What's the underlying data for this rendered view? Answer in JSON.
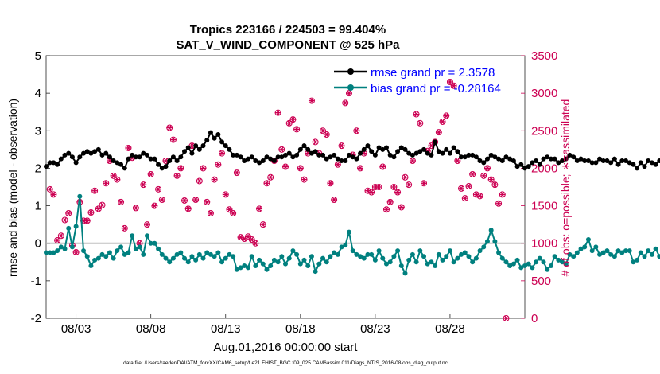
{
  "chart_data": {
    "type": "line",
    "title_line1": "Tropics 223166 / 224503 = 99.404%",
    "title_line2": "SAT_V_WIND_COMPONENT @ 525 hPa",
    "ylabel_left": "rmse and bias (model - observation)",
    "ylabel_right": "# of obs: o=possible; ∗=assimilated",
    "xlabel": "Aug.01,2016 00:00:00 start",
    "footnote": "data file: /Users/raeder/DAI/ATM_forcXX/CAM6_setup/f.e21.FHIST_BGC.f09_025.CAM6assim.011/Diags_NTrS_2016-08/obs_diag_output.nc",
    "xlim": [
      1,
      33
    ],
    "ylim_left": [
      -2,
      5
    ],
    "ylim_right": [
      0,
      3500
    ],
    "yticks_left": [
      "-2",
      "-1",
      "0",
      "1",
      "2",
      "3",
      "4",
      "5"
    ],
    "yticks_right": [
      "0",
      "500",
      "1000",
      "1500",
      "2000",
      "2500",
      "3000",
      "3500"
    ],
    "xticks": [
      {
        "day": 3,
        "label": "08/03"
      },
      {
        "day": 8,
        "label": "08/08"
      },
      {
        "day": 13,
        "label": "08/13"
      },
      {
        "day": 18,
        "label": "08/18"
      },
      {
        "day": 23,
        "label": "08/23"
      },
      {
        "day": 28,
        "label": "08/28"
      }
    ],
    "legend": [
      {
        "name": "rmse grand pr = 2.3578",
        "color": "#000000"
      },
      {
        "name": "bias grand pr = -0.28164",
        "color": "#00807f"
      }
    ],
    "colors": {
      "rmse": "#000000",
      "bias": "#00807f",
      "obs": "#cc0052",
      "legend_text": "#0000ff",
      "zero_line": "#c0c0c0"
    },
    "series": [
      {
        "name": "rmse",
        "x_start": 1.0,
        "x_step": 0.25,
        "values": [
          2.05,
          2.15,
          2.15,
          2.1,
          2.25,
          2.35,
          2.4,
          2.3,
          2.15,
          2.3,
          2.4,
          2.45,
          2.4,
          2.45,
          2.5,
          2.35,
          2.4,
          2.3,
          2.2,
          2.15,
          2.1,
          2.0,
          2.25,
          2.35,
          2.3,
          2.3,
          2.4,
          2.35,
          2.25,
          2.25,
          2.1,
          2.0,
          2.05,
          2.2,
          2.3,
          2.2,
          2.3,
          2.45,
          2.55,
          2.4,
          2.6,
          2.5,
          2.6,
          2.75,
          2.95,
          2.8,
          2.9,
          2.7,
          2.6,
          2.5,
          2.35,
          2.35,
          2.3,
          2.2,
          2.25,
          2.3,
          2.2,
          2.15,
          2.2,
          2.3,
          2.25,
          2.2,
          2.3,
          2.3,
          2.35,
          2.4,
          2.3,
          2.35,
          2.5,
          2.6,
          2.5,
          2.4,
          2.45,
          2.35,
          2.35,
          2.25,
          2.3,
          2.35,
          2.25,
          2.2,
          2.2,
          2.35,
          2.3,
          2.25,
          2.4,
          2.5,
          2.6,
          2.45,
          2.35,
          2.55,
          2.5,
          2.55,
          2.35,
          2.3,
          2.45,
          2.55,
          2.5,
          2.4,
          2.35,
          2.4,
          2.45,
          2.5,
          2.4,
          2.35,
          2.7,
          2.45,
          2.4,
          2.5,
          2.4,
          2.55,
          2.45,
          2.3,
          2.3,
          2.35,
          2.35,
          2.3,
          2.2,
          2.15,
          2.25,
          2.35,
          2.3,
          2.25,
          2.2,
          2.3,
          2.25,
          2.2,
          2.05,
          2.1,
          2.0,
          2.05,
          2.15,
          2.2,
          2.1,
          2.25,
          2.3,
          2.25,
          2.25,
          2.15,
          2.2,
          2.25,
          2.35,
          2.3,
          2.2,
          2.25,
          2.2,
          2.2,
          2.15,
          2.15,
          2.25,
          2.2,
          2.2,
          2.15,
          2.25,
          2.1,
          2.2,
          2.2,
          2.15,
          2.1,
          2.0,
          2.15,
          2.05,
          2.2,
          2.15,
          2.1,
          2.2,
          2.15,
          2.1,
          2.05
        ]
      },
      {
        "name": "bias",
        "x_start": 1.0,
        "x_step": 0.25,
        "values": [
          -0.25,
          -0.25,
          -0.25,
          -0.2,
          -0.1,
          -0.15,
          0.4,
          -0.1,
          0.45,
          1.25,
          -0.2,
          -0.35,
          -0.6,
          -0.45,
          -0.4,
          -0.3,
          -0.35,
          -0.25,
          -0.4,
          -0.2,
          -0.1,
          -0.3,
          -0.25,
          0.2,
          -0.15,
          -0.1,
          -0.3,
          0.2,
          0.0,
          0.0,
          -0.15,
          -0.3,
          -0.4,
          -0.5,
          -0.4,
          -0.3,
          -0.25,
          -0.4,
          -0.5,
          -0.35,
          -0.45,
          -0.3,
          -0.4,
          -0.25,
          -0.3,
          -0.35,
          -0.25,
          -0.5,
          -0.4,
          -0.3,
          -0.35,
          -0.7,
          -0.65,
          -0.6,
          -0.65,
          -0.35,
          -0.6,
          -0.45,
          -0.55,
          -0.7,
          -0.6,
          -0.45,
          -0.5,
          -0.35,
          -0.55,
          -0.4,
          -0.2,
          -0.3,
          -0.55,
          -0.45,
          -0.6,
          -0.35,
          -0.75,
          -0.55,
          -0.4,
          -0.5,
          -0.35,
          -0.25,
          -0.3,
          -0.1,
          -0.05,
          0.3,
          -0.2,
          -0.3,
          -0.35,
          -0.4,
          -0.3,
          -0.3,
          -0.45,
          -0.2,
          -0.4,
          -0.55,
          -0.5,
          -0.35,
          -0.2,
          -0.6,
          -0.8,
          -0.45,
          -0.3,
          -0.5,
          -0.2,
          -0.35,
          -0.55,
          -0.5,
          -0.6,
          -0.3,
          -0.45,
          -0.35,
          -0.2,
          -0.5,
          -0.4,
          -0.3,
          -0.25,
          -0.35,
          -0.5,
          -0.4,
          -0.2,
          -0.1,
          0.05,
          0.35,
          0.05,
          -0.25,
          -0.4,
          -0.5,
          -0.6,
          -0.55,
          -0.45,
          -0.65,
          -0.6,
          -0.55,
          -0.65,
          -0.5,
          -0.4,
          -0.5,
          -0.7,
          -0.6,
          -0.35,
          -0.45,
          -0.5,
          -0.55,
          -0.3,
          -0.35,
          -0.25,
          -0.15,
          -0.1,
          0.1,
          -0.2,
          -0.1,
          -0.3,
          -0.25,
          -0.2,
          -0.3,
          -0.35,
          -0.2,
          -0.25,
          -0.2,
          -0.2,
          -0.5,
          -0.45,
          -0.25,
          -0.35,
          -0.2,
          -0.3,
          -0.15,
          -0.35,
          -0.55
        ]
      },
      {
        "name": "obs",
        "points": [
          [
            1.25,
            1720
          ],
          [
            1.5,
            1650
          ],
          [
            1.75,
            1040
          ],
          [
            2.0,
            1100
          ],
          [
            2.25,
            1310
          ],
          [
            2.5,
            1400
          ],
          [
            2.75,
            970
          ],
          [
            3.0,
            880
          ],
          [
            3.25,
            1550
          ],
          [
            3.5,
            1300
          ],
          [
            3.75,
            1300
          ],
          [
            4.0,
            1410
          ],
          [
            4.25,
            1700
          ],
          [
            4.5,
            1460
          ],
          [
            4.75,
            1510
          ],
          [
            5.0,
            1800
          ],
          [
            5.25,
            2100
          ],
          [
            5.5,
            1900
          ],
          [
            5.75,
            1850
          ],
          [
            6.0,
            1550
          ],
          [
            6.25,
            1200
          ],
          [
            6.5,
            2270
          ],
          [
            6.75,
            2140
          ],
          [
            7.0,
            1470
          ],
          [
            7.25,
            1000
          ],
          [
            7.5,
            1780
          ],
          [
            7.75,
            1250
          ],
          [
            8.0,
            1920
          ],
          [
            8.25,
            1500
          ],
          [
            8.5,
            1720
          ],
          [
            8.75,
            1580
          ],
          [
            9.0,
            2100
          ],
          [
            9.25,
            2540
          ],
          [
            9.5,
            2380
          ],
          [
            9.75,
            1900
          ],
          [
            10.0,
            2000
          ],
          [
            10.25,
            1570
          ],
          [
            10.5,
            1460
          ],
          [
            10.75,
            2300
          ],
          [
            11.0,
            1580
          ],
          [
            11.25,
            1830
          ],
          [
            11.5,
            2000
          ],
          [
            11.75,
            1550
          ],
          [
            12.0,
            1400
          ],
          [
            12.25,
            1850
          ],
          [
            12.5,
            2050
          ],
          [
            12.75,
            2200
          ],
          [
            13.0,
            1650
          ],
          [
            13.25,
            1450
          ],
          [
            13.5,
            1400
          ],
          [
            13.75,
            1940
          ],
          [
            14.0,
            1080
          ],
          [
            14.25,
            1060
          ],
          [
            14.5,
            1090
          ],
          [
            14.75,
            1050
          ],
          [
            15.0,
            1000
          ],
          [
            15.25,
            1460
          ],
          [
            15.5,
            1250
          ],
          [
            15.75,
            1800
          ],
          [
            16.0,
            1880
          ],
          [
            16.25,
            2100
          ],
          [
            16.5,
            2740
          ],
          [
            16.75,
            2250
          ],
          [
            17.0,
            2020
          ],
          [
            17.25,
            2600
          ],
          [
            17.5,
            2650
          ],
          [
            17.75,
            2520
          ],
          [
            18.0,
            2000
          ],
          [
            18.25,
            1850
          ],
          [
            18.5,
            2200
          ],
          [
            18.75,
            2900
          ],
          [
            19.0,
            2350
          ],
          [
            19.25,
            2200
          ],
          [
            19.5,
            2500
          ],
          [
            19.75,
            2450
          ],
          [
            20.0,
            1800
          ],
          [
            20.25,
            1580
          ],
          [
            20.5,
            2050
          ],
          [
            20.75,
            2300
          ],
          [
            21.0,
            2870
          ],
          [
            21.25,
            3000
          ],
          [
            21.5,
            2180
          ],
          [
            21.75,
            2500
          ],
          [
            22.0,
            2000
          ],
          [
            22.25,
            2200
          ],
          [
            22.5,
            1700
          ],
          [
            22.75,
            1680
          ],
          [
            23.0,
            1750
          ],
          [
            23.25,
            1750
          ],
          [
            23.5,
            2020
          ],
          [
            23.75,
            1450
          ],
          [
            24.0,
            1550
          ],
          [
            24.25,
            1750
          ],
          [
            24.5,
            1680
          ],
          [
            24.75,
            1480
          ],
          [
            25.0,
            1880
          ],
          [
            25.25,
            1780
          ],
          [
            25.5,
            2100
          ],
          [
            25.75,
            2720
          ],
          [
            26.0,
            2600
          ],
          [
            26.25,
            1800
          ],
          [
            26.5,
            2230
          ],
          [
            26.75,
            2300
          ],
          [
            27.0,
            2350
          ],
          [
            27.25,
            2480
          ],
          [
            27.5,
            2620
          ],
          [
            27.75,
            2700
          ],
          [
            28.0,
            3150
          ],
          [
            28.25,
            3100
          ],
          [
            28.5,
            2100
          ],
          [
            28.75,
            1730
          ],
          [
            29.0,
            1600
          ],
          [
            29.25,
            1760
          ],
          [
            29.5,
            1920
          ],
          [
            29.75,
            1650
          ],
          [
            30.0,
            1630
          ],
          [
            30.25,
            1900
          ],
          [
            30.5,
            2000
          ],
          [
            30.75,
            1850
          ],
          [
            31.0,
            1780
          ],
          [
            31.25,
            1530
          ],
          [
            31.5,
            1650
          ],
          [
            31.75,
            0
          ]
        ]
      }
    ]
  }
}
